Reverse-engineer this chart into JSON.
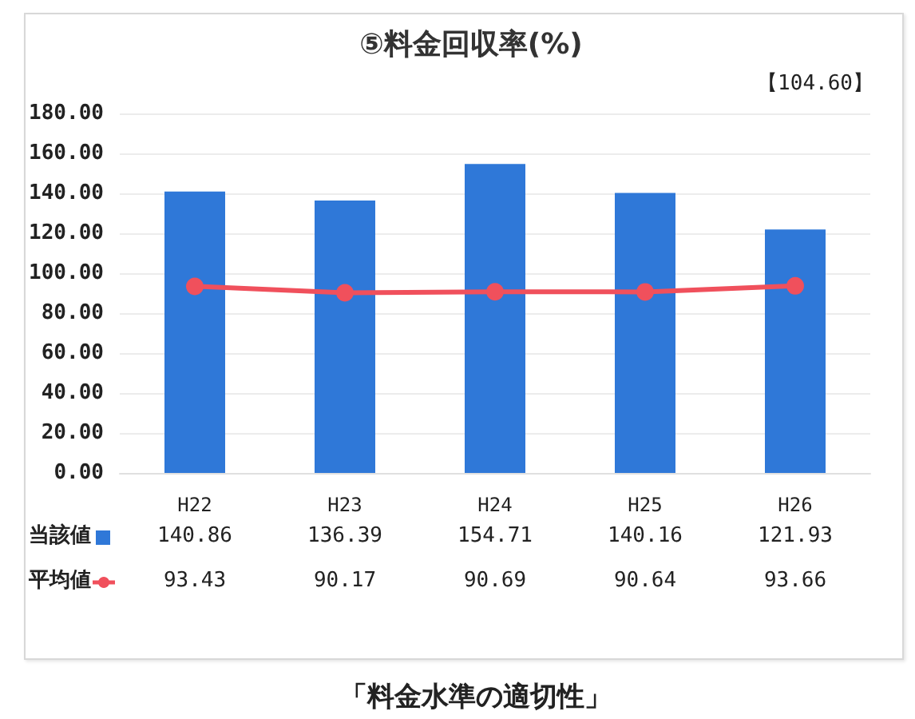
{
  "chart_data": {
    "type": "bar",
    "title": "⑤料金回収率(%)",
    "categories": [
      "H22",
      "H23",
      "H24",
      "H25",
      "H26"
    ],
    "series": [
      {
        "name": "当該値",
        "color": "#2f78d8",
        "values": [
          140.86,
          136.39,
          154.71,
          140.16,
          121.93
        ]
      },
      {
        "name": "平均値",
        "type": "line",
        "color": "#f0505c",
        "values": [
          93.43,
          90.17,
          90.69,
          90.64,
          93.66
        ]
      }
    ],
    "ylim": [
      0,
      180
    ],
    "yticks": [
      {
        "value": 0,
        "label": "0.00"
      },
      {
        "value": 20,
        "label": "20.00"
      },
      {
        "value": 40,
        "label": "40.00"
      },
      {
        "value": 60,
        "label": "60.00"
      },
      {
        "value": 80,
        "label": "80.00"
      },
      {
        "value": 100,
        "label": "100.00"
      },
      {
        "value": 120,
        "label": "120.00"
      },
      {
        "value": 140,
        "label": "140.00"
      },
      {
        "value": 160,
        "label": "160.00"
      },
      {
        "value": 180,
        "label": "180.00"
      }
    ],
    "grid": "y",
    "legend": "bottom left",
    "marker": "circle",
    "data_labels": true,
    "annotations": [
      "【104.60】",
      "「料金水準の適切性」"
    ]
  }
}
